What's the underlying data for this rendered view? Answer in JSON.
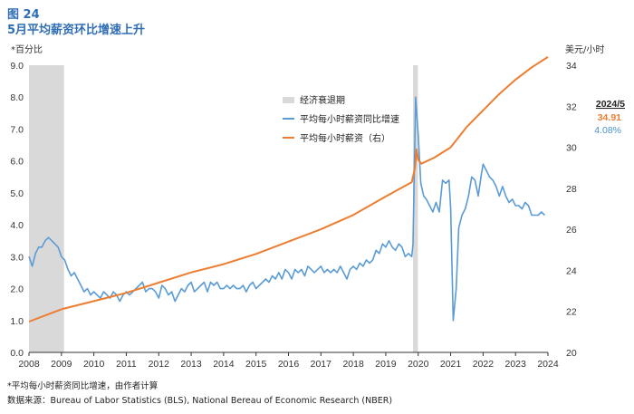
{
  "figure": {
    "number": "图 24",
    "title": "5月平均薪资环比增速上升"
  },
  "notes": {
    "footnote": "*平均每小时薪资同比增速，由作者计算",
    "source": "数据来源：Bureau of Labor Statistics (BLS), National Bereau of Economic Research (NBER)"
  },
  "chart_data": {
    "type": "line",
    "left_axis_label": "*百分比",
    "right_axis_label": "美元/小时",
    "ylim_left": [
      0.0,
      9.0
    ],
    "ylim_right": [
      20,
      34
    ],
    "xlim": [
      2008,
      2024
    ],
    "x_ticks": [
      "2008",
      "2009",
      "2010",
      "2011",
      "2012",
      "2013",
      "2014",
      "2015",
      "2016",
      "2017",
      "2018",
      "2019",
      "2020",
      "2021",
      "2022",
      "2023",
      "2024"
    ],
    "y_ticks_left": [
      "0.0",
      "1.0",
      "2.0",
      "3.0",
      "4.0",
      "5.0",
      "6.0",
      "7.0",
      "8.0",
      "9.0"
    ],
    "y_ticks_right": [
      "20",
      "22",
      "24",
      "26",
      "28",
      "30",
      "32",
      "34"
    ],
    "grid": false,
    "legend": {
      "position": "center-top",
      "items": [
        {
          "label": "经济衰退期",
          "kind": "band",
          "color": "#d9d9d9"
        },
        {
          "label": "平均每小时薪资同比增速",
          "kind": "line",
          "color": "#5b9bd5"
        },
        {
          "label": "平均每小时薪资（右）",
          "kind": "line",
          "color": "#ed7d31"
        }
      ]
    },
    "recessions": [
      {
        "start": 2008.0,
        "end": 2009.08
      },
      {
        "start": 2019.84,
        "end": 2019.99
      }
    ],
    "annotation": {
      "date": "2024/5",
      "wage_value": "34.91",
      "growth_value": "4.08%"
    },
    "series": [
      {
        "name": "平均每小时薪资同比增速",
        "axis": "left",
        "color": "#5b9bd5",
        "points": [
          [
            2008.0,
            3.0
          ],
          [
            2008.1,
            2.7
          ],
          [
            2008.2,
            3.1
          ],
          [
            2008.3,
            3.3
          ],
          [
            2008.4,
            3.3
          ],
          [
            2008.5,
            3.5
          ],
          [
            2008.6,
            3.6
          ],
          [
            2008.7,
            3.5
          ],
          [
            2008.8,
            3.4
          ],
          [
            2008.9,
            3.3
          ],
          [
            2009.0,
            3.0
          ],
          [
            2009.1,
            2.9
          ],
          [
            2009.2,
            2.6
          ],
          [
            2009.3,
            2.4
          ],
          [
            2009.4,
            2.5
          ],
          [
            2009.5,
            2.3
          ],
          [
            2009.6,
            2.1
          ],
          [
            2009.7,
            1.9
          ],
          [
            2009.8,
            2.0
          ],
          [
            2009.9,
            1.8
          ],
          [
            2010.0,
            1.9
          ],
          [
            2010.1,
            1.8
          ],
          [
            2010.2,
            1.7
          ],
          [
            2010.3,
            1.9
          ],
          [
            2010.4,
            1.8
          ],
          [
            2010.5,
            1.7
          ],
          [
            2010.6,
            1.9
          ],
          [
            2010.7,
            1.8
          ],
          [
            2010.8,
            1.6
          ],
          [
            2010.9,
            1.8
          ],
          [
            2011.0,
            1.9
          ],
          [
            2011.1,
            1.8
          ],
          [
            2011.2,
            1.9
          ],
          [
            2011.3,
            2.0
          ],
          [
            2011.4,
            2.1
          ],
          [
            2011.5,
            2.2
          ],
          [
            2011.6,
            1.9
          ],
          [
            2011.7,
            2.0
          ],
          [
            2011.8,
            2.0
          ],
          [
            2011.9,
            1.9
          ],
          [
            2012.0,
            1.7
          ],
          [
            2012.1,
            2.1
          ],
          [
            2012.2,
            2.0
          ],
          [
            2012.3,
            1.8
          ],
          [
            2012.4,
            1.9
          ],
          [
            2012.5,
            1.6
          ],
          [
            2012.6,
            1.8
          ],
          [
            2012.7,
            2.0
          ],
          [
            2012.8,
            1.9
          ],
          [
            2012.9,
            2.1
          ],
          [
            2013.0,
            2.2
          ],
          [
            2013.1,
            1.9
          ],
          [
            2013.2,
            2.0
          ],
          [
            2013.3,
            2.1
          ],
          [
            2013.4,
            2.2
          ],
          [
            2013.5,
            1.9
          ],
          [
            2013.6,
            2.2
          ],
          [
            2013.7,
            2.1
          ],
          [
            2013.8,
            2.2
          ],
          [
            2013.9,
            2.0
          ],
          [
            2014.0,
            2.0
          ],
          [
            2014.1,
            2.1
          ],
          [
            2014.2,
            2.0
          ],
          [
            2014.3,
            2.1
          ],
          [
            2014.4,
            2.0
          ],
          [
            2014.5,
            2.0
          ],
          [
            2014.6,
            2.1
          ],
          [
            2014.7,
            1.9
          ],
          [
            2014.8,
            2.1
          ],
          [
            2014.9,
            2.2
          ],
          [
            2015.0,
            2.0
          ],
          [
            2015.1,
            2.1
          ],
          [
            2015.2,
            2.2
          ],
          [
            2015.3,
            2.3
          ],
          [
            2015.4,
            2.2
          ],
          [
            2015.5,
            2.4
          ],
          [
            2015.6,
            2.3
          ],
          [
            2015.7,
            2.5
          ],
          [
            2015.8,
            2.3
          ],
          [
            2015.9,
            2.6
          ],
          [
            2016.0,
            2.5
          ],
          [
            2016.1,
            2.3
          ],
          [
            2016.2,
            2.6
          ],
          [
            2016.3,
            2.5
          ],
          [
            2016.4,
            2.6
          ],
          [
            2016.5,
            2.4
          ],
          [
            2016.6,
            2.7
          ],
          [
            2016.7,
            2.6
          ],
          [
            2016.8,
            2.5
          ],
          [
            2016.9,
            2.6
          ],
          [
            2017.0,
            2.7
          ],
          [
            2017.1,
            2.5
          ],
          [
            2017.2,
            2.6
          ],
          [
            2017.3,
            2.5
          ],
          [
            2017.4,
            2.6
          ],
          [
            2017.5,
            2.5
          ],
          [
            2017.6,
            2.7
          ],
          [
            2017.7,
            2.5
          ],
          [
            2017.8,
            2.3
          ],
          [
            2017.9,
            2.6
          ],
          [
            2018.0,
            2.7
          ],
          [
            2018.1,
            2.6
          ],
          [
            2018.2,
            2.8
          ],
          [
            2018.3,
            2.7
          ],
          [
            2018.4,
            2.9
          ],
          [
            2018.5,
            2.8
          ],
          [
            2018.6,
            2.9
          ],
          [
            2018.7,
            3.2
          ],
          [
            2018.8,
            3.1
          ],
          [
            2018.9,
            3.4
          ],
          [
            2019.0,
            3.3
          ],
          [
            2019.1,
            3.5
          ],
          [
            2019.2,
            3.3
          ],
          [
            2019.3,
            3.2
          ],
          [
            2019.4,
            3.4
          ],
          [
            2019.5,
            3.3
          ],
          [
            2019.6,
            3.0
          ],
          [
            2019.7,
            3.1
          ],
          [
            2019.8,
            3.0
          ],
          [
            2019.84,
            3.4
          ],
          [
            2019.92,
            8.0
          ],
          [
            2020.0,
            6.8
          ],
          [
            2020.08,
            5.3
          ],
          [
            2020.17,
            4.9
          ],
          [
            2020.25,
            4.8
          ],
          [
            2020.35,
            4.6
          ],
          [
            2020.45,
            4.4
          ],
          [
            2020.55,
            4.7
          ],
          [
            2020.65,
            4.4
          ],
          [
            2020.75,
            5.4
          ],
          [
            2020.85,
            5.3
          ],
          [
            2020.95,
            5.4
          ],
          [
            2021.0,
            4.5
          ],
          [
            2021.08,
            1.0
          ],
          [
            2021.17,
            2.0
          ],
          [
            2021.25,
            3.9
          ],
          [
            2021.35,
            4.3
          ],
          [
            2021.45,
            4.5
          ],
          [
            2021.55,
            4.9
          ],
          [
            2021.65,
            5.5
          ],
          [
            2021.75,
            5.4
          ],
          [
            2021.85,
            4.9
          ],
          [
            2021.95,
            5.6
          ],
          [
            2022.0,
            5.9
          ],
          [
            2022.1,
            5.7
          ],
          [
            2022.2,
            5.5
          ],
          [
            2022.3,
            5.4
          ],
          [
            2022.4,
            5.2
          ],
          [
            2022.5,
            4.9
          ],
          [
            2022.6,
            5.2
          ],
          [
            2022.7,
            4.9
          ],
          [
            2022.8,
            4.7
          ],
          [
            2022.9,
            4.8
          ],
          [
            2023.0,
            4.6
          ],
          [
            2023.1,
            4.6
          ],
          [
            2023.2,
            4.5
          ],
          [
            2023.3,
            4.7
          ],
          [
            2023.4,
            4.6
          ],
          [
            2023.5,
            4.3
          ],
          [
            2023.6,
            4.3
          ],
          [
            2023.7,
            4.3
          ],
          [
            2023.8,
            4.4
          ],
          [
            2023.9,
            4.3
          ]
        ]
      },
      {
        "name": "平均每小时薪资（右）",
        "axis": "right",
        "color": "#ed7d31",
        "points": [
          [
            2008.0,
            21.5
          ],
          [
            2009.0,
            22.1
          ],
          [
            2010.0,
            22.5
          ],
          [
            2011.0,
            22.9
          ],
          [
            2012.0,
            23.4
          ],
          [
            2013.0,
            23.9
          ],
          [
            2014.0,
            24.3
          ],
          [
            2015.0,
            24.8
          ],
          [
            2016.0,
            25.4
          ],
          [
            2017.0,
            26.0
          ],
          [
            2018.0,
            26.7
          ],
          [
            2019.0,
            27.6
          ],
          [
            2019.8,
            28.3
          ],
          [
            2019.9,
            29.0
          ],
          [
            2019.95,
            29.9
          ],
          [
            2020.0,
            29.4
          ],
          [
            2020.1,
            29.2
          ],
          [
            2020.5,
            29.5
          ],
          [
            2021.0,
            30.0
          ],
          [
            2021.5,
            31.0
          ],
          [
            2022.0,
            31.8
          ],
          [
            2022.5,
            32.6
          ],
          [
            2023.0,
            33.3
          ],
          [
            2023.5,
            33.9
          ],
          [
            2024.0,
            34.4
          ]
        ]
      }
    ]
  }
}
